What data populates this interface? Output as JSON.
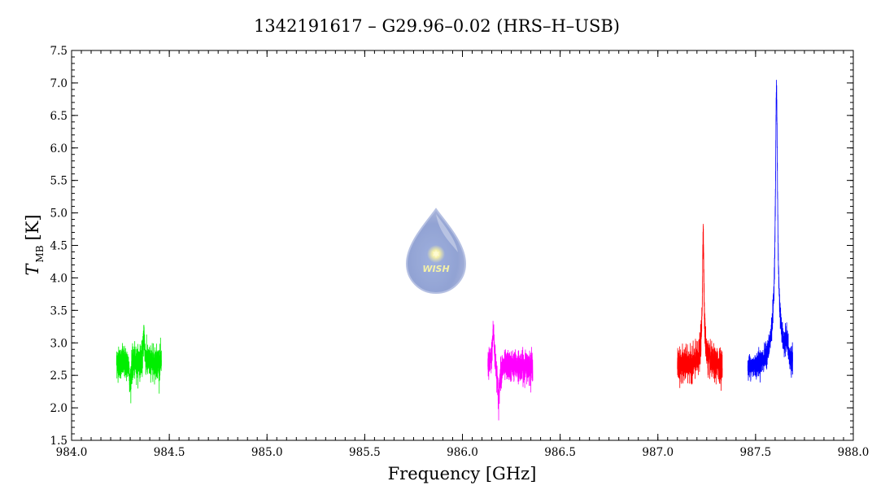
{
  "chart_data": {
    "type": "line",
    "title": "1342191617 – G29.96–0.02 (HRS–H–USB)",
    "xlabel": "Frequency [GHz]",
    "ylabel_main": "T",
    "ylabel_sub": "MB",
    "ylabel_unit": "[K]",
    "xlim": [
      984.0,
      988.0
    ],
    "ylim": [
      1.5,
      7.5
    ],
    "x_ticks": [
      984.0,
      984.5,
      985.0,
      985.5,
      986.0,
      986.5,
      987.0,
      987.5,
      988.0
    ],
    "x_tick_labels": [
      "984.0",
      "984.5",
      "985.0",
      "985.5",
      "986.0",
      "986.5",
      "987.0",
      "987.5",
      "988.0"
    ],
    "y_ticks": [
      1.5,
      2.0,
      2.5,
      3.0,
      3.5,
      4.0,
      4.5,
      5.0,
      5.5,
      6.0,
      6.5,
      7.0,
      7.5
    ],
    "y_tick_labels": [
      "1.5",
      "2.0",
      "2.5",
      "3.0",
      "3.5",
      "4.0",
      "4.5",
      "5.0",
      "5.5",
      "6.0",
      "6.5",
      "7.0",
      "7.5"
    ],
    "grid": false,
    "logo": {
      "text": "WISH"
    },
    "series": [
      {
        "color": "#00ee00",
        "x_range": [
          984.23,
          984.46
        ],
        "baseline": 2.7,
        "noise_rms": 0.12,
        "features": [
          {
            "center": 984.37,
            "width": 0.004,
            "amplitude": 0.45
          },
          {
            "center": 984.3,
            "width": 0.004,
            "amplitude": -0.35
          }
        ]
      },
      {
        "color": "#ff00ff",
        "x_range": [
          986.13,
          986.36
        ],
        "baseline": 2.65,
        "noise_rms": 0.11,
        "features": [
          {
            "center": 986.158,
            "width": 0.006,
            "amplitude": 0.55
          },
          {
            "center": 986.185,
            "width": 0.006,
            "amplitude": -0.55
          }
        ]
      },
      {
        "color": "#ff0000",
        "x_range": [
          987.1,
          987.33
        ],
        "baseline": 2.65,
        "noise_rms": 0.12,
        "features": [
          {
            "center": 987.232,
            "width": 0.004,
            "amplitude": 1.75
          },
          {
            "center": 987.232,
            "width": 0.014,
            "amplitude": 0.35
          }
        ]
      },
      {
        "color": "#0000ff",
        "x_range": [
          987.46,
          987.69
        ],
        "baseline": 2.6,
        "noise_rms": 0.09,
        "features": [
          {
            "center": 987.607,
            "width": 0.006,
            "amplitude": 3.6
          },
          {
            "center": 987.607,
            "width": 0.028,
            "amplitude": 0.75
          },
          {
            "center": 987.66,
            "width": 0.006,
            "amplitude": 0.3
          }
        ]
      }
    ]
  }
}
